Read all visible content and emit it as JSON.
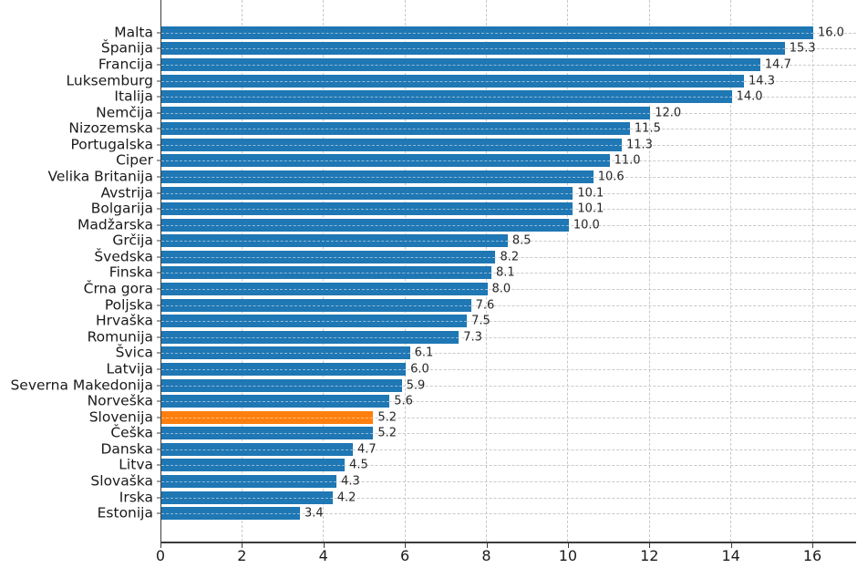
{
  "chart_data": {
    "type": "bar",
    "orientation": "horizontal",
    "title": "",
    "xlabel": "",
    "ylabel": "",
    "xlim": [
      0,
      17.1
    ],
    "x_ticks": [
      0,
      2,
      4,
      6,
      8,
      10,
      12,
      14,
      16
    ],
    "grid": true,
    "legend_position": "none",
    "highlighted_category": "Slovenija",
    "colors": {
      "bar": "#1f77b4",
      "highlight": "#ff7f0e",
      "grid": "#c9c9c9",
      "axis": "#3c3c3c",
      "text": "#1a1a1a"
    },
    "bars": [
      {
        "label": "Malta",
        "value": 16.0,
        "value_label": "16.0"
      },
      {
        "label": "Španija",
        "value": 15.3,
        "value_label": "15.3"
      },
      {
        "label": "Francija",
        "value": 14.7,
        "value_label": "14.7"
      },
      {
        "label": "Luksemburg",
        "value": 14.3,
        "value_label": "14.3"
      },
      {
        "label": "Italija",
        "value": 14.0,
        "value_label": "14.0"
      },
      {
        "label": "Nemčija",
        "value": 12.0,
        "value_label": "12.0"
      },
      {
        "label": "Nizozemska",
        "value": 11.5,
        "value_label": "11.5"
      },
      {
        "label": "Portugalska",
        "value": 11.3,
        "value_label": "11.3"
      },
      {
        "label": "Ciper",
        "value": 11.0,
        "value_label": "11.0"
      },
      {
        "label": "Velika Britanija",
        "value": 10.6,
        "value_label": "10.6"
      },
      {
        "label": "Avstrija",
        "value": 10.1,
        "value_label": "10.1"
      },
      {
        "label": "Bolgarija",
        "value": 10.1,
        "value_label": "10.1"
      },
      {
        "label": "Madžarska",
        "value": 10.0,
        "value_label": "10.0"
      },
      {
        "label": "Grčija",
        "value": 8.5,
        "value_label": "8.5"
      },
      {
        "label": "Švedska",
        "value": 8.2,
        "value_label": "8.2"
      },
      {
        "label": "Finska",
        "value": 8.1,
        "value_label": "8.1"
      },
      {
        "label": "Črna gora",
        "value": 8.0,
        "value_label": "8.0"
      },
      {
        "label": "Poljska",
        "value": 7.6,
        "value_label": "7.6"
      },
      {
        "label": "Hrvaška",
        "value": 7.5,
        "value_label": "7.5"
      },
      {
        "label": "Romunija",
        "value": 7.3,
        "value_label": "7.3"
      },
      {
        "label": "Švica",
        "value": 6.1,
        "value_label": "6.1"
      },
      {
        "label": "Latvija",
        "value": 6.0,
        "value_label": "6.0"
      },
      {
        "label": "Severna Makedonija",
        "value": 5.9,
        "value_label": "5.9"
      },
      {
        "label": "Norveška",
        "value": 5.6,
        "value_label": "5.6"
      },
      {
        "label": "Slovenija",
        "value": 5.2,
        "value_label": "5.2"
      },
      {
        "label": "Češka",
        "value": 5.2,
        "value_label": "5.2"
      },
      {
        "label": "Danska",
        "value": 4.7,
        "value_label": "4.7"
      },
      {
        "label": "Litva",
        "value": 4.5,
        "value_label": "4.5"
      },
      {
        "label": "Slovaška",
        "value": 4.3,
        "value_label": "4.3"
      },
      {
        "label": "Irska",
        "value": 4.2,
        "value_label": "4.2"
      },
      {
        "label": "Estonija",
        "value": 3.4,
        "value_label": "3.4"
      }
    ]
  }
}
